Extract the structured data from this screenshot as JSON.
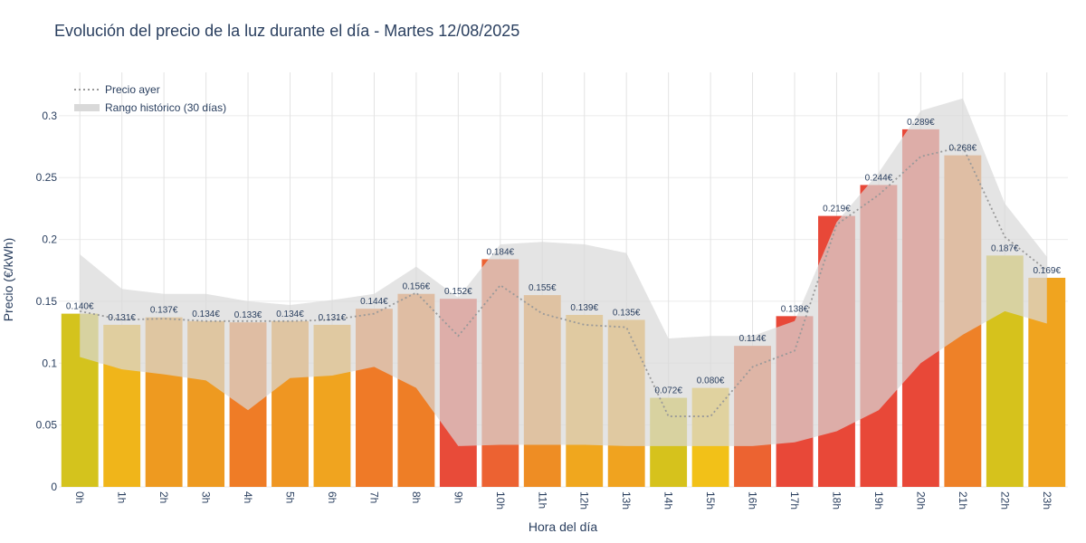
{
  "chart_data": {
    "type": "bar",
    "title": "Evolución del precio de la luz durante el día - Martes 12/08/2025",
    "xlabel": "Hora del día",
    "ylabel": "Precio (€/kWh)",
    "ylim": [
      0,
      0.335
    ],
    "yticks": [
      0,
      0.05,
      0.1,
      0.15,
      0.2,
      0.25,
      0.3
    ],
    "ytick_labels": [
      "0",
      "0.05",
      "0.1",
      "0.15",
      "0.2",
      "0.25",
      "0.3"
    ],
    "grid": true,
    "categories": [
      "0h",
      "1h",
      "2h",
      "3h",
      "4h",
      "5h",
      "6h",
      "7h",
      "8h",
      "9h",
      "10h",
      "11h",
      "12h",
      "13h",
      "14h",
      "15h",
      "16h",
      "17h",
      "18h",
      "19h",
      "20h",
      "21h",
      "22h",
      "23h"
    ],
    "series": [
      {
        "values": [
          0.14,
          0.131,
          0.137,
          0.134,
          0.133,
          0.134,
          0.131,
          0.144,
          0.156,
          0.152,
          0.184,
          0.155,
          0.139,
          0.135,
          0.072,
          0.08,
          0.114,
          0.138,
          0.219,
          0.244,
          0.289,
          0.268,
          0.187,
          0.169
        ],
        "labels": [
          "0.140€",
          "0.131€",
          "0.137€",
          "0.134€",
          "0.133€",
          "0.134€",
          "0.131€",
          "0.144€",
          "0.156€",
          "0.152€",
          "0.184€",
          "0.155€",
          "0.139€",
          "0.135€",
          "0.072€",
          "0.080€",
          "0.114€",
          "0.138€",
          "0.219€",
          "0.244€",
          "0.289€",
          "0.268€",
          "0.187€",
          "0.169€"
        ],
        "colors": [
          "#d4c31d",
          "#f0b51a",
          "#ee9a20",
          "#ee9a20",
          "#ef7c26",
          "#ef9622",
          "#f0a41f",
          "#ef7a27",
          "#ee7e26",
          "#e84b39",
          "#ec6232",
          "#ee8d24",
          "#f0a71e",
          "#f0a31f",
          "#d6c21c",
          "#f2c118",
          "#ec6331",
          "#e84838",
          "#e84838",
          "#e84838",
          "#e84838",
          "#ee8128",
          "#d6c21c",
          "#f0a41f"
        ]
      },
      {
        "name": "Precio ayer",
        "type": "line",
        "style": "dotted",
        "color": "#999999",
        "values": [
          0.142,
          0.135,
          0.136,
          0.134,
          0.134,
          0.134,
          0.135,
          0.14,
          0.157,
          0.122,
          0.163,
          0.14,
          0.131,
          0.129,
          0.057,
          0.057,
          0.097,
          0.11,
          0.212,
          0.236,
          0.267,
          0.275,
          0.202,
          0.175
        ]
      },
      {
        "name": "Rango histórico (30 días)",
        "type": "area-band",
        "color": "#d9d9d9",
        "upper": [
          0.188,
          0.16,
          0.156,
          0.156,
          0.15,
          0.147,
          0.151,
          0.156,
          0.178,
          0.153,
          0.196,
          0.198,
          0.196,
          0.189,
          0.12,
          0.122,
          0.122,
          0.134,
          0.214,
          0.254,
          0.304,
          0.314,
          0.229,
          0.186
        ],
        "lower": [
          0.105,
          0.095,
          0.091,
          0.086,
          0.062,
          0.088,
          0.09,
          0.097,
          0.08,
          0.033,
          0.034,
          0.034,
          0.034,
          0.033,
          0.033,
          0.033,
          0.033,
          0.036,
          0.045,
          0.062,
          0.1,
          0.123,
          0.142,
          0.132
        ]
      }
    ],
    "legend": {
      "placement": "top-left",
      "items": [
        {
          "label": "Precio ayer",
          "kind": "dotted-line",
          "color": "#999999"
        },
        {
          "label": "Rango histórico (30 días)",
          "kind": "band",
          "color": "#d9d9d9"
        }
      ]
    }
  }
}
